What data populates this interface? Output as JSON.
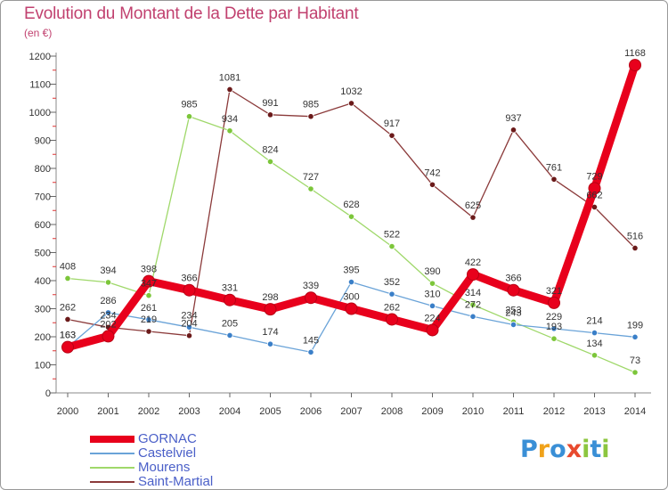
{
  "header": {
    "title": "Evolution du Montant de la Dette par Habitant",
    "unit": "(en €)"
  },
  "logo": {
    "text": "Proxiti",
    "letters": [
      {
        "ch": "P",
        "color": "#3a8fd6"
      },
      {
        "ch": "r",
        "color": "#f0a21a"
      },
      {
        "ch": "o",
        "color": "#3a8fd6"
      },
      {
        "ch": "x",
        "color": "#e84a2e"
      },
      {
        "ch": "i",
        "color": "#8cc63f"
      },
      {
        "ch": "t",
        "color": "#3a8fd6"
      },
      {
        "ch": "i",
        "color": "#8cc63f"
      }
    ]
  },
  "chart_data": {
    "type": "line",
    "title": "Evolution du Montant de la Dette par Habitant",
    "subtitle": "(en €)",
    "categories": [
      "2000",
      "2001",
      "2002",
      "2003",
      "2004",
      "2005",
      "2006",
      "2007",
      "2008",
      "2009",
      "2010",
      "2011",
      "2012",
      "2013",
      "2014"
    ],
    "ylim": [
      0,
      1200
    ],
    "yticks": [
      0,
      100,
      200,
      300,
      400,
      500,
      600,
      700,
      800,
      900,
      1000,
      1100,
      1200
    ],
    "grid": false,
    "legend_position": "bottom-left",
    "series": [
      {
        "name": "GORNAC",
        "color": "#e8001c",
        "marker_color": "#e8001c",
        "emphasis": true,
        "values": [
          163,
          202,
          398,
          366,
          331,
          298,
          339,
          300,
          262,
          224,
          422,
          366,
          321,
          729,
          1168
        ],
        "labels": [
          "163",
          "202",
          "398",
          "366",
          "331",
          "298",
          "339",
          "300",
          "262",
          "224",
          "422",
          "366",
          "321",
          "729",
          "1168"
        ]
      },
      {
        "name": "Castelviel",
        "color": "#6aa3d8",
        "marker_color": "#3a7fc8",
        "values": [
          163,
          286,
          261,
          234,
          205,
          174,
          145,
          395,
          352,
          310,
          272,
          243,
          229,
          214,
          199
        ],
        "labels": [
          "163",
          "286",
          "261",
          "234",
          "205",
          "174",
          "145",
          "395",
          "352",
          "310",
          "272",
          "243",
          "229",
          "214",
          "199"
        ]
      },
      {
        "name": "Mourens",
        "color": "#9fd86a",
        "marker_color": "#7cc63a",
        "values": [
          408,
          394,
          347,
          985,
          934,
          824,
          727,
          628,
          522,
          390,
          314,
          253,
          193,
          134,
          73
        ],
        "labels": [
          "408",
          "394",
          "347",
          "985",
          "934",
          "824",
          "727",
          "628",
          "522",
          "390",
          "314",
          "253",
          "193",
          "134",
          "73"
        ]
      },
      {
        "name": "Saint-Martial",
        "color": "#8b3a3a",
        "marker_color": "#6b1a1a",
        "segments_break_after": 3,
        "values": [
          262,
          234,
          219,
          204,
          1081,
          991,
          985,
          1032,
          917,
          742,
          625,
          937,
          761,
          662,
          516
        ],
        "labels": [
          "262",
          "234",
          "219",
          "204",
          "1081",
          "991",
          "985",
          "1032",
          "917",
          "742",
          "625",
          "937",
          "761",
          "662",
          "516"
        ]
      }
    ]
  }
}
